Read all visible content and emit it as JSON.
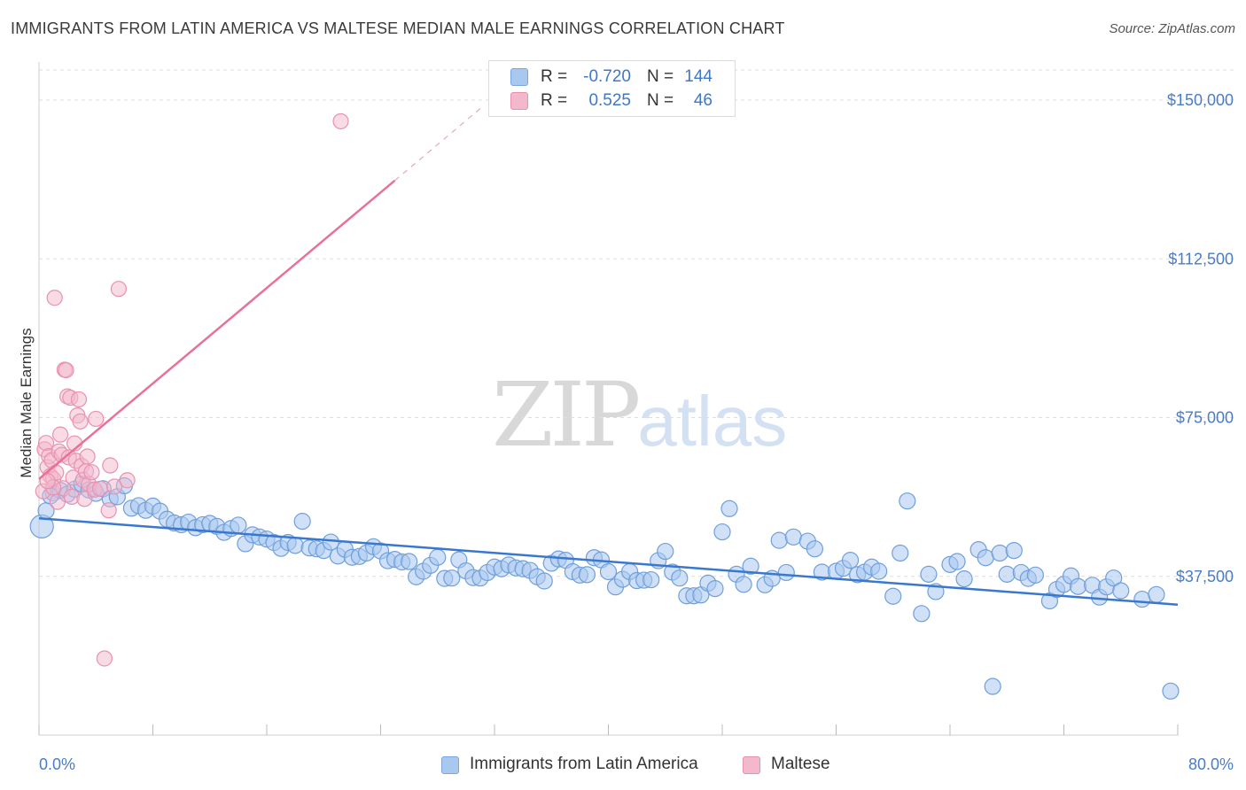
{
  "title": "IMMIGRANTS FROM LATIN AMERICA VS MALTESE MEDIAN MALE EARNINGS CORRELATION CHART",
  "source": "Source: ZipAtlas.com",
  "watermark": {
    "zip": "ZIP",
    "atlas": "atlas"
  },
  "colors": {
    "blue": "#3a78cf",
    "blue_fill": "#a9c8f0",
    "pink": "#e8709a",
    "pink_fill": "#f4b8cc",
    "tick_text": "#4a7cc7"
  },
  "legend": {
    "rows": [
      {
        "r_label": "R =",
        "r_value": "-0.720",
        "n_label": "N =",
        "n_value": "144"
      },
      {
        "r_label": "R =",
        "r_value": "0.525",
        "n_label": "N =",
        "n_value": "46"
      }
    ]
  },
  "bottom_legend": [
    "Immigrants from Latin America",
    "Maltese"
  ],
  "chart_data": {
    "type": "scatter",
    "ylabel": "Median Male Earnings",
    "xlim": [
      0,
      80
    ],
    "ylim": [
      0,
      159000
    ],
    "x_tick_labels": [
      "0.0%",
      "80.0%"
    ],
    "y_ticks": [
      37500,
      75000,
      112500,
      150000
    ],
    "y_tick_labels": [
      "$37,500",
      "$75,000",
      "$112,500",
      "$150,000"
    ],
    "grid": true,
    "legend_position": "top-center",
    "series": [
      {
        "name": "Immigrants from Latin America",
        "r": -0.72,
        "n": 144,
        "trend": {
          "x0": 0,
          "y0": 51200,
          "x1": 80,
          "y1": 30800
        },
        "points": [
          [
            0.2,
            49300
          ],
          [
            0.5,
            53000
          ],
          [
            1,
            57200
          ],
          [
            1.5,
            57800
          ],
          [
            2,
            56900
          ],
          [
            2.5,
            58100
          ],
          [
            3,
            59300
          ],
          [
            3.5,
            57900
          ],
          [
            4,
            57100
          ],
          [
            4.5,
            58200
          ],
          [
            5,
            55800
          ],
          [
            5.5,
            56300
          ],
          [
            6,
            58900
          ],
          [
            6.5,
            53600
          ],
          [
            7,
            54200
          ],
          [
            7.5,
            53100
          ],
          [
            8,
            54100
          ],
          [
            8.5,
            52900
          ],
          [
            9,
            51000
          ],
          [
            9.5,
            50100
          ],
          [
            10,
            49700
          ],
          [
            10.5,
            50300
          ],
          [
            11,
            49000
          ],
          [
            11.5,
            49700
          ],
          [
            12,
            50000
          ],
          [
            12.5,
            49300
          ],
          [
            13,
            47900
          ],
          [
            13.5,
            48800
          ],
          [
            14,
            49600
          ],
          [
            14.5,
            45200
          ],
          [
            15,
            47300
          ],
          [
            15.5,
            46800
          ],
          [
            16,
            46300
          ],
          [
            16.5,
            45500
          ],
          [
            17,
            44100
          ],
          [
            17.5,
            45500
          ],
          [
            18,
            44800
          ],
          [
            18.5,
            50500
          ],
          [
            19,
            44200
          ],
          [
            19.5,
            44000
          ],
          [
            20,
            43600
          ],
          [
            20.5,
            45600
          ],
          [
            21,
            42300
          ],
          [
            21.5,
            43900
          ],
          [
            22,
            42000
          ],
          [
            22.5,
            42200
          ],
          [
            23,
            43000
          ],
          [
            23.5,
            44500
          ],
          [
            24,
            43500
          ],
          [
            24.5,
            41200
          ],
          [
            25,
            41500
          ],
          [
            25.5,
            40900
          ],
          [
            26,
            41000
          ],
          [
            26.5,
            37400
          ],
          [
            27,
            38700
          ],
          [
            27.5,
            40100
          ],
          [
            28,
            42000
          ],
          [
            28.5,
            37000
          ],
          [
            29,
            37100
          ],
          [
            29.5,
            41400
          ],
          [
            30,
            38800
          ],
          [
            30.5,
            37200
          ],
          [
            31,
            37100
          ],
          [
            31.5,
            38400
          ],
          [
            32,
            39700
          ],
          [
            32.5,
            39300
          ],
          [
            33,
            40200
          ],
          [
            33.5,
            39500
          ],
          [
            34,
            39300
          ],
          [
            34.5,
            38900
          ],
          [
            35,
            37400
          ],
          [
            35.5,
            36400
          ],
          [
            36,
            40600
          ],
          [
            36.5,
            41600
          ],
          [
            37,
            41300
          ],
          [
            37.5,
            38600
          ],
          [
            38,
            37800
          ],
          [
            38.5,
            37900
          ],
          [
            39,
            41900
          ],
          [
            39.5,
            41400
          ],
          [
            40,
            38600
          ],
          [
            40.5,
            35000
          ],
          [
            41,
            36800
          ],
          [
            41.5,
            38600
          ],
          [
            42,
            36500
          ],
          [
            42.5,
            36600
          ],
          [
            43,
            36700
          ],
          [
            43.5,
            41200
          ],
          [
            44,
            43400
          ],
          [
            44.5,
            38500
          ],
          [
            45,
            37100
          ],
          [
            45.5,
            32900
          ],
          [
            46,
            32900
          ],
          [
            46.5,
            33100
          ],
          [
            47,
            35900
          ],
          [
            47.5,
            34600
          ],
          [
            48,
            48000
          ],
          [
            48.5,
            53500
          ],
          [
            49,
            38000
          ],
          [
            49.5,
            35600
          ],
          [
            50,
            39900
          ],
          [
            51,
            35500
          ],
          [
            51.5,
            37000
          ],
          [
            52,
            46000
          ],
          [
            52.5,
            38400
          ],
          [
            53,
            46800
          ],
          [
            54,
            45800
          ],
          [
            54.5,
            44000
          ],
          [
            55,
            38500
          ],
          [
            56,
            38700
          ],
          [
            56.5,
            39400
          ],
          [
            57,
            41300
          ],
          [
            57.5,
            37900
          ],
          [
            58,
            38500
          ],
          [
            58.5,
            39700
          ],
          [
            59,
            38700
          ],
          [
            60,
            32800
          ],
          [
            60.5,
            43000
          ],
          [
            61,
            55300
          ],
          [
            62,
            28700
          ],
          [
            62.5,
            38000
          ],
          [
            63,
            33900
          ],
          [
            64,
            40300
          ],
          [
            64.5,
            41000
          ],
          [
            65,
            36900
          ],
          [
            66,
            43800
          ],
          [
            66.5,
            41900
          ],
          [
            67,
            11500
          ],
          [
            67.5,
            43000
          ],
          [
            68,
            38000
          ],
          [
            68.5,
            43600
          ],
          [
            69,
            38400
          ],
          [
            69.5,
            37000
          ],
          [
            70,
            37800
          ],
          [
            71,
            31700
          ],
          [
            71.5,
            34400
          ],
          [
            72,
            35600
          ],
          [
            72.5,
            37600
          ],
          [
            73,
            35100
          ],
          [
            74,
            35400
          ],
          [
            74.5,
            32600
          ],
          [
            75,
            35000
          ],
          [
            75.5,
            37100
          ],
          [
            76,
            34100
          ],
          [
            77.5,
            32100
          ],
          [
            78.5,
            33200
          ],
          [
            79.5,
            10400
          ],
          [
            0.8,
            56500
          ]
        ]
      },
      {
        "name": "Maltese",
        "r": 0.525,
        "n": 46,
        "trend": {
          "x0": 0,
          "y0": 60500,
          "x1": 25,
          "y1": 131000,
          "dash_to_x": 31,
          "dash_to_y": 148000
        },
        "points": [
          [
            0.3,
            57600
          ],
          [
            0.4,
            67500
          ],
          [
            0.5,
            69000
          ],
          [
            0.6,
            63300
          ],
          [
            0.7,
            65900
          ],
          [
            0.8,
            61200
          ],
          [
            0.9,
            64900
          ],
          [
            1,
            60500
          ],
          [
            1.1,
            103300
          ],
          [
            1.2,
            62000
          ],
          [
            1.3,
            55100
          ],
          [
            1.4,
            67000
          ],
          [
            1.5,
            71000
          ],
          [
            1.6,
            66200
          ],
          [
            1.7,
            58300
          ],
          [
            1.8,
            86300
          ],
          [
            1.9,
            86200
          ],
          [
            2,
            80000
          ],
          [
            2.1,
            65600
          ],
          [
            2.2,
            79700
          ],
          [
            2.3,
            56300
          ],
          [
            2.4,
            60800
          ],
          [
            2.5,
            68900
          ],
          [
            2.6,
            64800
          ],
          [
            2.7,
            75500
          ],
          [
            2.8,
            79300
          ],
          [
            2.9,
            74100
          ],
          [
            3,
            63600
          ],
          [
            3.1,
            60300
          ],
          [
            3.2,
            55800
          ],
          [
            3.3,
            62300
          ],
          [
            3.4,
            65800
          ],
          [
            3.5,
            59300
          ],
          [
            3.7,
            62100
          ],
          [
            3.9,
            58000
          ],
          [
            4,
            74700
          ],
          [
            4.3,
            58200
          ],
          [
            4.6,
            18100
          ],
          [
            4.9,
            53100
          ],
          [
            5,
            63700
          ],
          [
            5.3,
            58700
          ],
          [
            5.6,
            105400
          ],
          [
            6.2,
            60200
          ],
          [
            21.2,
            145000
          ],
          [
            1.0,
            58500
          ],
          [
            0.6,
            60000
          ]
        ]
      }
    ]
  }
}
